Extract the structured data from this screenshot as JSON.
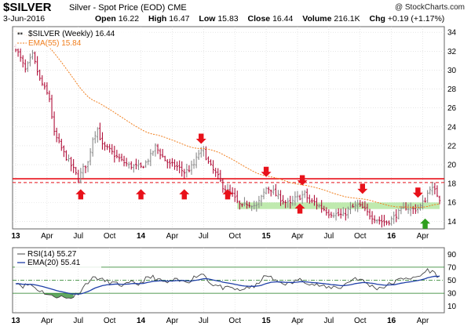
{
  "header": {
    "symbol": "$SILVER",
    "description": "Silver - Spot Price (EOD)",
    "exchange": "CME",
    "brand": "@ StockCharts.com",
    "date": "3-Jun-2016",
    "open_label": "Open",
    "open": "16.22",
    "high_label": "High",
    "high": "16.47",
    "low_label": "Low",
    "low": "15.83",
    "close_label": "Close",
    "close": "16.44",
    "volume_label": "Volume",
    "volume": "216.1K",
    "chg_label": "Chg",
    "chg": "+0.19 (+1.17%)"
  },
  "colors": {
    "up_bar": "#8a8a8a",
    "down_bar": "#b0103a",
    "ema55": "#f07f1f",
    "resistance": "#e8111a",
    "support_zone": "#b4e6a0",
    "arrow_down": "#e8111a",
    "arrow_up": "#2e9e1e",
    "rsi_line": "#444444",
    "rsi_ema": "#1f3fa8",
    "rsi_fill_high": "#2e8b2e",
    "rsi_fill_low": "#2e8b2e",
    "grid": "#d8d8d8"
  },
  "chart_data": [
    {
      "type": "ohlc",
      "legend": {
        "price": "$SILVER (Weekly) 16.44",
        "ema": "EMA(55) 15.84"
      },
      "ylim": [
        13.2,
        34.6
      ],
      "y_ticks": [
        14,
        16,
        18,
        20,
        22,
        24,
        26,
        28,
        30,
        32,
        34
      ],
      "x_ticks": [
        {
          "label": "13",
          "week": 0,
          "bold": true
        },
        {
          "label": "Apr",
          "week": 13
        },
        {
          "label": "Jul",
          "week": 26
        },
        {
          "label": "Oct",
          "week": 39
        },
        {
          "label": "14",
          "week": 52,
          "bold": true
        },
        {
          "label": "Apr",
          "week": 65
        },
        {
          "label": "Jul",
          "week": 78
        },
        {
          "label": "Oct",
          "week": 91
        },
        {
          "label": "15",
          "week": 104,
          "bold": true
        },
        {
          "label": "Apr",
          "week": 117
        },
        {
          "label": "Jul",
          "week": 130
        },
        {
          "label": "Oct",
          "week": 143
        },
        {
          "label": "16",
          "week": 156,
          "bold": true
        },
        {
          "label": "Apr",
          "week": 169
        }
      ],
      "anchors": [
        [
          0,
          32.4
        ],
        [
          4,
          30.0
        ],
        [
          7,
          31.6
        ],
        [
          10,
          29.0
        ],
        [
          14,
          27.0
        ],
        [
          16,
          23.3
        ],
        [
          20,
          21.2
        ],
        [
          24,
          19.5
        ],
        [
          26,
          18.5
        ],
        [
          28,
          19.6
        ],
        [
          30,
          20.2
        ],
        [
          32,
          22.8
        ],
        [
          34,
          23.8
        ],
        [
          36,
          22.0
        ],
        [
          39,
          21.5
        ],
        [
          42,
          20.8
        ],
        [
          44,
          20.4
        ],
        [
          47,
          19.9
        ],
        [
          50,
          19.8
        ],
        [
          52,
          19.7
        ],
        [
          54,
          20.2
        ],
        [
          56,
          20.9
        ],
        [
          58,
          21.9
        ],
        [
          60,
          21.2
        ],
        [
          62,
          20.5
        ],
        [
          64,
          20.0
        ],
        [
          66,
          19.9
        ],
        [
          68,
          19.6
        ],
        [
          70,
          19.2
        ],
        [
          72,
          19.5
        ],
        [
          74,
          20.0
        ],
        [
          76,
          21.2
        ],
        [
          78,
          21.5
        ],
        [
          80,
          20.2
        ],
        [
          82,
          19.4
        ],
        [
          84,
          18.7
        ],
        [
          86,
          17.7
        ],
        [
          88,
          17.2
        ],
        [
          90,
          16.8
        ],
        [
          92,
          16.0
        ],
        [
          94,
          15.5
        ],
        [
          96,
          15.9
        ],
        [
          98,
          15.8
        ],
        [
          100,
          15.6
        ],
        [
          102,
          16.5
        ],
        [
          104,
          17.5
        ],
        [
          106,
          17.4
        ],
        [
          108,
          16.8
        ],
        [
          110,
          16.4
        ],
        [
          112,
          16.0
        ],
        [
          114,
          15.8
        ],
        [
          116,
          16.4
        ],
        [
          118,
          16.6
        ],
        [
          120,
          16.9
        ],
        [
          122,
          16.1
        ],
        [
          124,
          16.0
        ],
        [
          126,
          15.6
        ],
        [
          128,
          15.3
        ],
        [
          130,
          14.9
        ],
        [
          132,
          14.8
        ],
        [
          134,
          14.7
        ],
        [
          136,
          14.6
        ],
        [
          138,
          15.2
        ],
        [
          140,
          15.5
        ],
        [
          142,
          15.7
        ],
        [
          144,
          15.4
        ],
        [
          146,
          14.9
        ],
        [
          148,
          14.5
        ],
        [
          150,
          14.2
        ],
        [
          152,
          14.0
        ],
        [
          154,
          13.9
        ],
        [
          156,
          14.2
        ],
        [
          158,
          14.7
        ],
        [
          160,
          15.1
        ],
        [
          162,
          15.5
        ],
        [
          164,
          15.3
        ],
        [
          166,
          15.3
        ],
        [
          168,
          15.6
        ],
        [
          170,
          16.3
        ],
        [
          172,
          17.6
        ],
        [
          174,
          17.2
        ],
        [
          176,
          16.4
        ]
      ],
      "resistance_solid": 18.5,
      "resistance_dashed": 18.1,
      "support_zone": [
        15.3,
        16.0
      ],
      "support_zone_weeks": [
        92,
        176
      ],
      "arrows_down": [
        {
          "week": 77,
          "value": 22.2
        },
        {
          "week": 104,
          "value": 18.7
        },
        {
          "week": 119,
          "value": 17.8
        },
        {
          "week": 144,
          "value": 16.9
        },
        {
          "week": 167,
          "value": 16.5
        }
      ],
      "arrows_up": [
        {
          "week": 27,
          "value": 17.4
        },
        {
          "week": 52,
          "value": 17.4
        },
        {
          "week": 70,
          "value": 17.4
        },
        {
          "week": 88,
          "value": 17.4
        },
        {
          "week": 118,
          "value": 15.9
        },
        {
          "week": 170,
          "value": 14.3
        }
      ]
    },
    {
      "type": "line",
      "legend": {
        "rsi": "RSI(14) 55.27",
        "ema": "EMA(20) 55.41"
      },
      "ylim": [
        0,
        100
      ],
      "y_ticks": [
        10,
        30,
        50,
        70,
        90
      ],
      "overbought": 70,
      "oversold": 30,
      "midline": 50,
      "anchors": [
        [
          0,
          48
        ],
        [
          3,
          41
        ],
        [
          6,
          44
        ],
        [
          9,
          36
        ],
        [
          12,
          31
        ],
        [
          15,
          25
        ],
        [
          18,
          26
        ],
        [
          21,
          22
        ],
        [
          24,
          25
        ],
        [
          27,
          34
        ],
        [
          30,
          48
        ],
        [
          33,
          55
        ],
        [
          36,
          50
        ],
        [
          39,
          47
        ],
        [
          42,
          44
        ],
        [
          45,
          42
        ],
        [
          48,
          46
        ],
        [
          51,
          44
        ],
        [
          54,
          52
        ],
        [
          57,
          55
        ],
        [
          60,
          49
        ],
        [
          63,
          46
        ],
        [
          66,
          50
        ],
        [
          69,
          48
        ],
        [
          72,
          49
        ],
        [
          75,
          57
        ],
        [
          78,
          60
        ],
        [
          81,
          45
        ],
        [
          84,
          41
        ],
        [
          87,
          37
        ],
        [
          90,
          38
        ],
        [
          93,
          33
        ],
        [
          96,
          40
        ],
        [
          99,
          38
        ],
        [
          102,
          52
        ],
        [
          105,
          57
        ],
        [
          108,
          48
        ],
        [
          111,
          46
        ],
        [
          114,
          44
        ],
        [
          117,
          51
        ],
        [
          120,
          49
        ],
        [
          123,
          44
        ],
        [
          126,
          42
        ],
        [
          129,
          38
        ],
        [
          132,
          40
        ],
        [
          135,
          39
        ],
        [
          138,
          47
        ],
        [
          141,
          54
        ],
        [
          144,
          49
        ],
        [
          147,
          42
        ],
        [
          150,
          38
        ],
        [
          153,
          40
        ],
        [
          156,
          45
        ],
        [
          159,
          50
        ],
        [
          162,
          55
        ],
        [
          165,
          52
        ],
        [
          168,
          57
        ],
        [
          171,
          66
        ],
        [
          173,
          63
        ],
        [
          176,
          55
        ]
      ],
      "x_ticks": [
        {
          "label": "13",
          "week": 0,
          "bold": true
        },
        {
          "label": "Apr",
          "week": 13
        },
        {
          "label": "Jul",
          "week": 26
        },
        {
          "label": "Oct",
          "week": 39
        },
        {
          "label": "14",
          "week": 52,
          "bold": true
        },
        {
          "label": "Apr",
          "week": 65
        },
        {
          "label": "Jul",
          "week": 78
        },
        {
          "label": "Oct",
          "week": 91
        },
        {
          "label": "15",
          "week": 104,
          "bold": true
        },
        {
          "label": "Apr",
          "week": 117
        },
        {
          "label": "Jul",
          "week": 130
        },
        {
          "label": "Oct",
          "week": 143
        },
        {
          "label": "16",
          "week": 156,
          "bold": true
        },
        {
          "label": "Apr",
          "week": 169
        }
      ]
    }
  ]
}
